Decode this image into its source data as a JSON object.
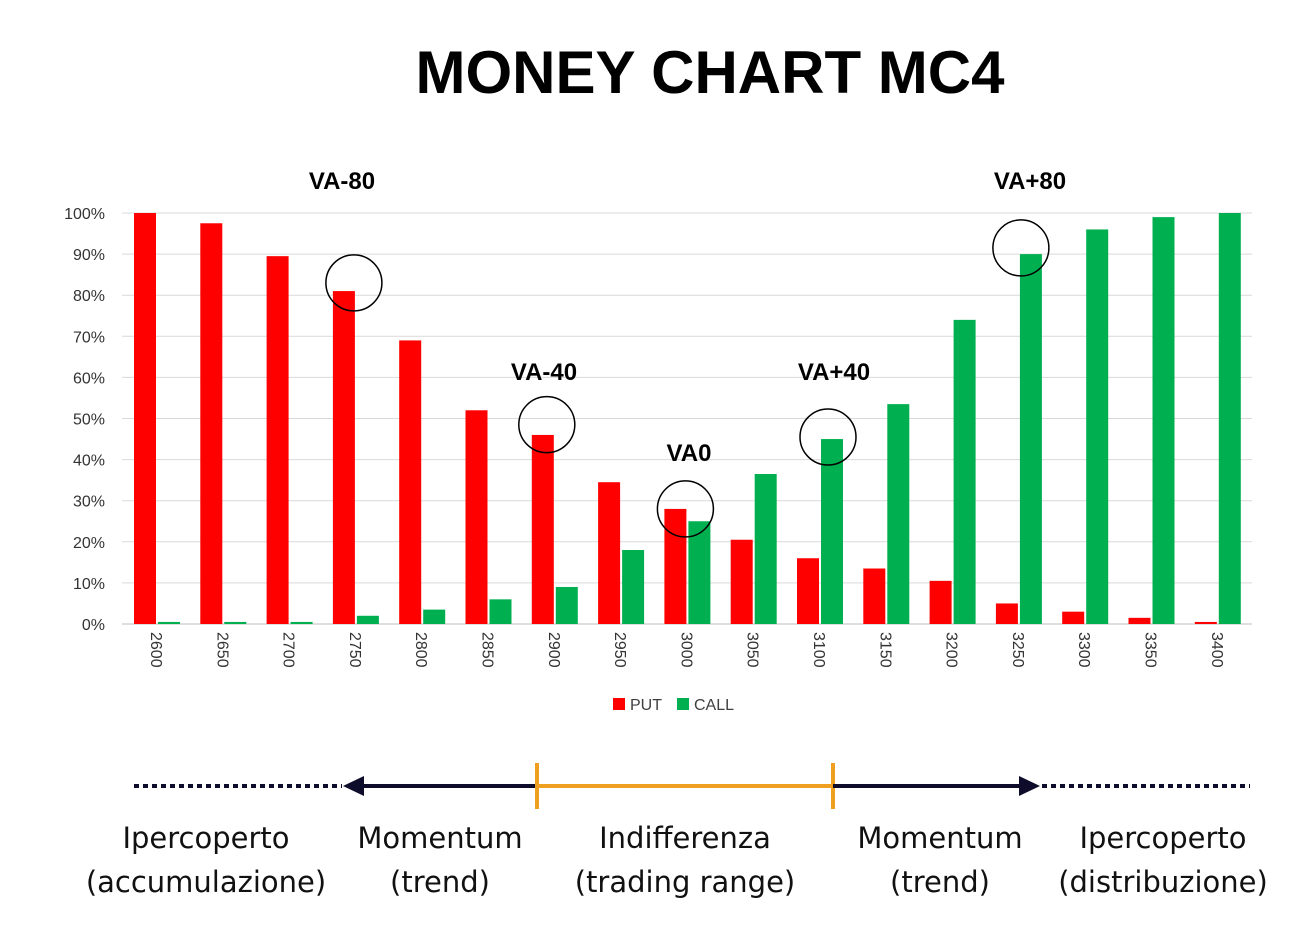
{
  "chart_data": {
    "type": "bar",
    "title": "MONEY CHART MC4",
    "categories": [
      "2600",
      "2650",
      "2700",
      "2750",
      "2800",
      "2850",
      "2900",
      "2950",
      "3000",
      "3050",
      "3100",
      "3150",
      "3200",
      "3250",
      "3300",
      "3350",
      "3400"
    ],
    "series": [
      {
        "name": "PUT",
        "color": "#ff0000",
        "values": [
          100,
          97.5,
          89.5,
          81,
          69,
          52,
          46,
          34.5,
          28,
          20.5,
          16,
          13.5,
          10.5,
          5,
          3,
          1.5,
          0.5
        ]
      },
      {
        "name": "CALL",
        "color": "#00b050",
        "values": [
          0.5,
          0.5,
          0.5,
          2,
          3.5,
          6,
          9,
          18,
          25,
          36.5,
          45,
          53.5,
          74,
          90,
          96,
          99,
          100
        ]
      }
    ],
    "y_tick_labels": [
      "0%",
      "10%",
      "20%",
      "30%",
      "40%",
      "50%",
      "60%",
      "70%",
      "80%",
      "90%",
      "100%"
    ],
    "ylim": [
      0,
      100
    ],
    "grid": true,
    "legend": "bottom",
    "annotations": [
      {
        "label": "VA-80",
        "category": "2750",
        "value": 83
      },
      {
        "label": "VA-40",
        "category": "2900",
        "value": 48.5
      },
      {
        "label": "VA0",
        "category": "3000",
        "value": 28
      },
      {
        "label": "VA+40",
        "category": "3100",
        "value": 45.5
      },
      {
        "label": "VA+80",
        "category": "3250",
        "value": 91.5
      }
    ]
  },
  "zones": [
    {
      "line1": "Ipercoperto",
      "line2": "(accumulazione)"
    },
    {
      "line1": "Momentum",
      "line2": "(trend)"
    },
    {
      "line1": "Indifferenza",
      "line2": "(trading range)"
    },
    {
      "line1": "Momentum",
      "line2": "(trend)"
    },
    {
      "line1": "Ipercoperto",
      "line2": "(distribuzione)"
    }
  ],
  "colors": {
    "put": "#ff0000",
    "call": "#00b050",
    "arrow": "#0d0d2b",
    "range": "#f0a020",
    "grid": "#d9d9d9"
  }
}
